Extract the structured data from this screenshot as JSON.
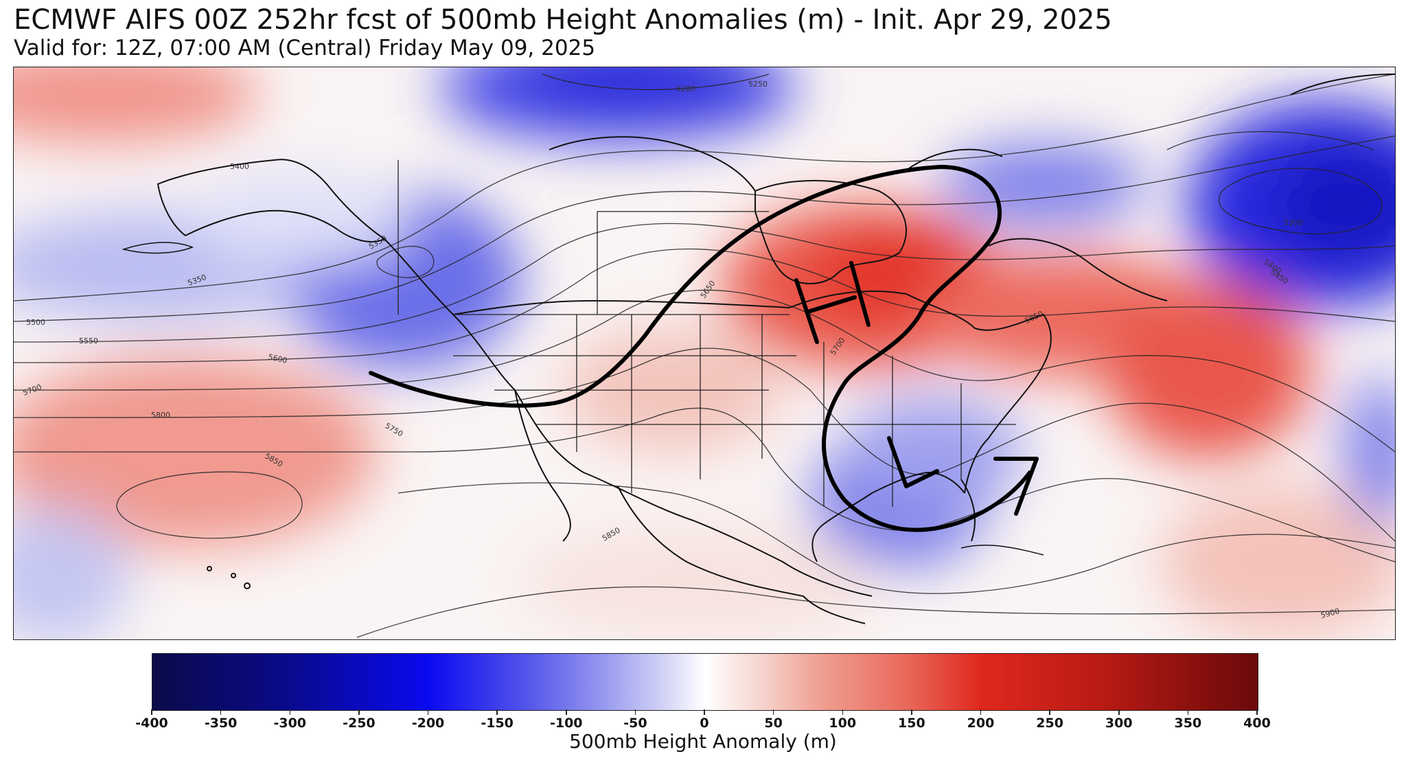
{
  "title": "ECMWF AIFS 00Z 252hr fcst of 500mb Height Anomalies (m) - Init. Apr 29, 2025",
  "subtitle": "Valid for: 12Z, 07:00 AM (Central) Friday May 09, 2025",
  "colorbar": {
    "label": "500mb Height Anomaly (m)",
    "min": -400,
    "max": 400,
    "ticks": [
      "-400",
      "-350",
      "-300",
      "-250",
      "-200",
      "-150",
      "-100",
      "-50",
      "0",
      "50",
      "100",
      "150",
      "200",
      "250",
      "300",
      "350",
      "400"
    ],
    "colors": {
      "low_extreme": "#0b0b4a",
      "low": "#0a0af0",
      "mid_low": "#8f90ee",
      "neutral": "#ffffff",
      "mid_high": "#f0a396",
      "high": "#e0281e",
      "high_extreme": "#6a0a0a"
    }
  },
  "contour_labels": [
    "5200",
    "5250",
    "5300",
    "5350",
    "5350",
    "5400",
    "5400",
    "5450",
    "5500",
    "5550",
    "5600",
    "5650",
    "5650",
    "5700",
    "5700",
    "5750",
    "5800",
    "5850",
    "5850",
    "5900"
  ],
  "annotations": {
    "high_letter": "H",
    "low_letter": "L"
  }
}
